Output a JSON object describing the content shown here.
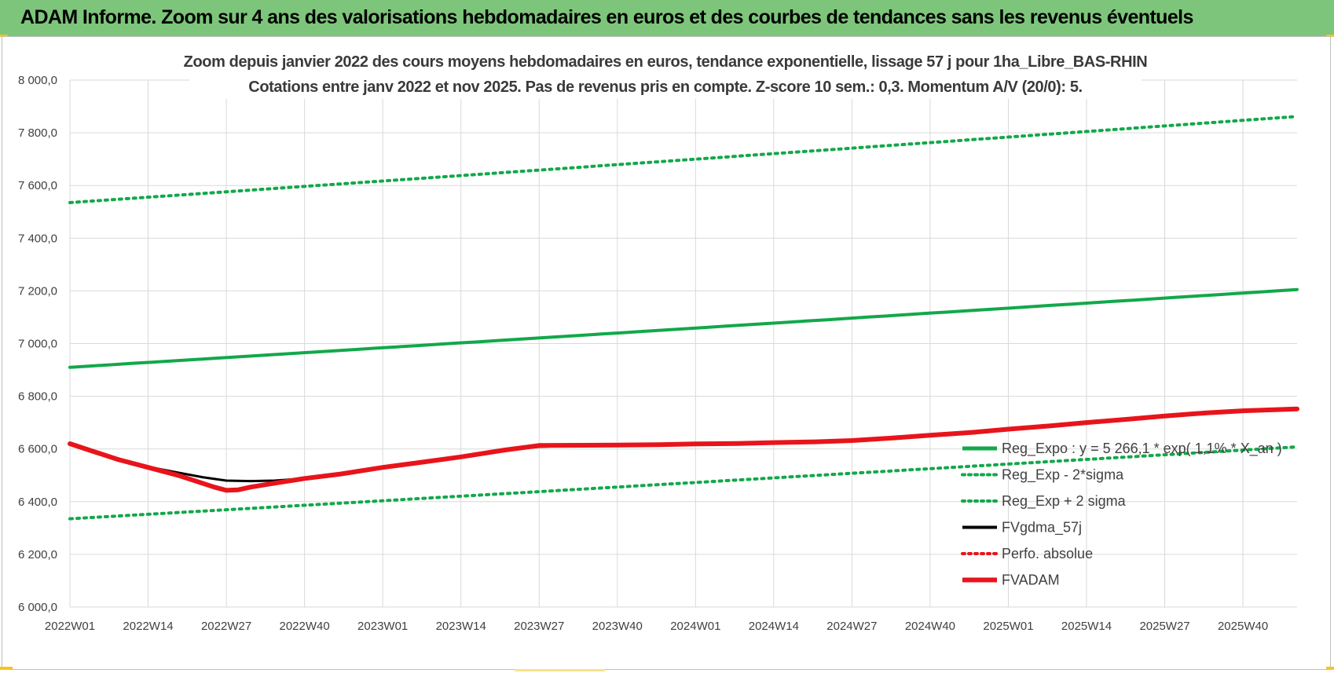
{
  "banner": {
    "title": "ADAM Informe. Zoom sur 4 ans des valorisations hebdomadaires en euros et des courbes de tendances sans les revenus éventuels"
  },
  "colors": {
    "banner_bg": "#7dc57a",
    "green": "#12a84a",
    "red": "#e8141b",
    "black": "#000000",
    "grid": "#d9d9d9"
  },
  "chart_data": {
    "type": "line",
    "title_line1": "Zoom depuis janvier 2022 des cours moyens hebdomadaires en euros, tendance exponentielle, lissage 57 j pour 1ha_Libre_BAS-RHIN",
    "title_line2": "Cotations entre janv 2022 et nov 2025. Pas de revenus pris en compte. Z-score 10 sem.: 0,3. Momentum A/V (20/0): 5.",
    "x_tick_labels": [
      "2022W01",
      "2022W14",
      "2022W27",
      "2022W40",
      "2023W01",
      "2023W14",
      "2023W27",
      "2023W40",
      "2024W01",
      "2024W14",
      "2024W27",
      "2024W40",
      "2025W01",
      "2025W14",
      "2025W27",
      "2025W40"
    ],
    "x_unit": "weeks since 2022W01",
    "x_tick_positions": [
      0,
      13,
      26,
      39,
      52,
      65,
      78,
      91,
      104,
      117,
      130,
      143,
      156,
      169,
      182,
      195
    ],
    "xlim": [
      0,
      204
    ],
    "y_tick_labels": [
      "8 000,0",
      "7 800,0",
      "7 600,0",
      "7 400,0",
      "7 200,0",
      "7 000,0",
      "6 800,0",
      "6 600,0",
      "6 400,0",
      "6 200,0",
      "6 000,0"
    ],
    "y_tick_values": [
      8000,
      7800,
      7600,
      7400,
      7200,
      7000,
      6800,
      6600,
      6400,
      6200,
      6000
    ],
    "ylim": [
      6000,
      8000
    ],
    "legend_position": "right",
    "series": [
      {
        "key": "reg_expo",
        "name": "Reg_Expo : y = 5 266,1 * exp( 1,1% * X_an )",
        "color": "#12a84a",
        "style": "solid",
        "width": 4,
        "x": [
          0,
          204
        ],
        "y": [
          6910,
          7205
        ],
        "curve": "exp"
      },
      {
        "key": "reg_minus",
        "name": "Reg_Exp - 2*sigma",
        "color": "#12a84a",
        "style": "dotted",
        "width": 4,
        "x": [
          0,
          204
        ],
        "y": [
          6335,
          6608
        ],
        "curve": "exp"
      },
      {
        "key": "reg_plus",
        "name": "Reg_Exp + 2 sigma",
        "color": "#12a84a",
        "style": "dotted",
        "width": 4,
        "x": [
          0,
          204
        ],
        "y": [
          7535,
          7862
        ],
        "curve": "exp"
      },
      {
        "key": "fvgdma",
        "name": "FVgdma_57j",
        "color": "#000000",
        "style": "solid",
        "width": 3,
        "x": [
          0,
          4,
          8,
          13,
          18,
          22,
          26,
          30,
          34,
          39,
          45,
          52,
          58,
          65,
          72,
          78,
          85,
          91,
          98,
          104,
          111,
          117,
          124,
          130,
          137,
          143,
          150,
          156,
          163,
          169,
          176,
          182,
          189,
          195,
          204
        ],
        "y": [
          6620,
          6590,
          6560,
          6532,
          6510,
          6493,
          6480,
          6478,
          6480,
          6488,
          6505,
          6530,
          6548,
          6570,
          6595,
          6608,
          6613,
          6615,
          6616,
          6618,
          6620,
          6623,
          6627,
          6632,
          6642,
          6652,
          6663,
          6675,
          6688,
          6700,
          6713,
          6725,
          6737,
          6745,
          6752
        ]
      },
      {
        "key": "perfo",
        "name": "Perfo. absolue",
        "color": "#e8141b",
        "style": "dotted",
        "width": 3,
        "x": [],
        "y": []
      },
      {
        "key": "fvadam",
        "name": "FVADAM",
        "color": "#e8141b",
        "style": "solid",
        "width": 6,
        "x": [
          0,
          4,
          8,
          13,
          18,
          22,
          24,
          26,
          28,
          30,
          34,
          39,
          45,
          52,
          58,
          65,
          72,
          78,
          85,
          91,
          98,
          104,
          111,
          117,
          124,
          130,
          137,
          143,
          150,
          156,
          163,
          169,
          176,
          182,
          189,
          195,
          204
        ],
        "y": [
          6620,
          6590,
          6560,
          6530,
          6500,
          6470,
          6455,
          6443,
          6445,
          6455,
          6470,
          6488,
          6505,
          6530,
          6548,
          6570,
          6595,
          6613,
          6614,
          6615,
          6616,
          6619,
          6621,
          6624,
          6627,
          6632,
          6642,
          6652,
          6663,
          6675,
          6688,
          6700,
          6713,
          6725,
          6737,
          6745,
          6752
        ]
      }
    ]
  }
}
